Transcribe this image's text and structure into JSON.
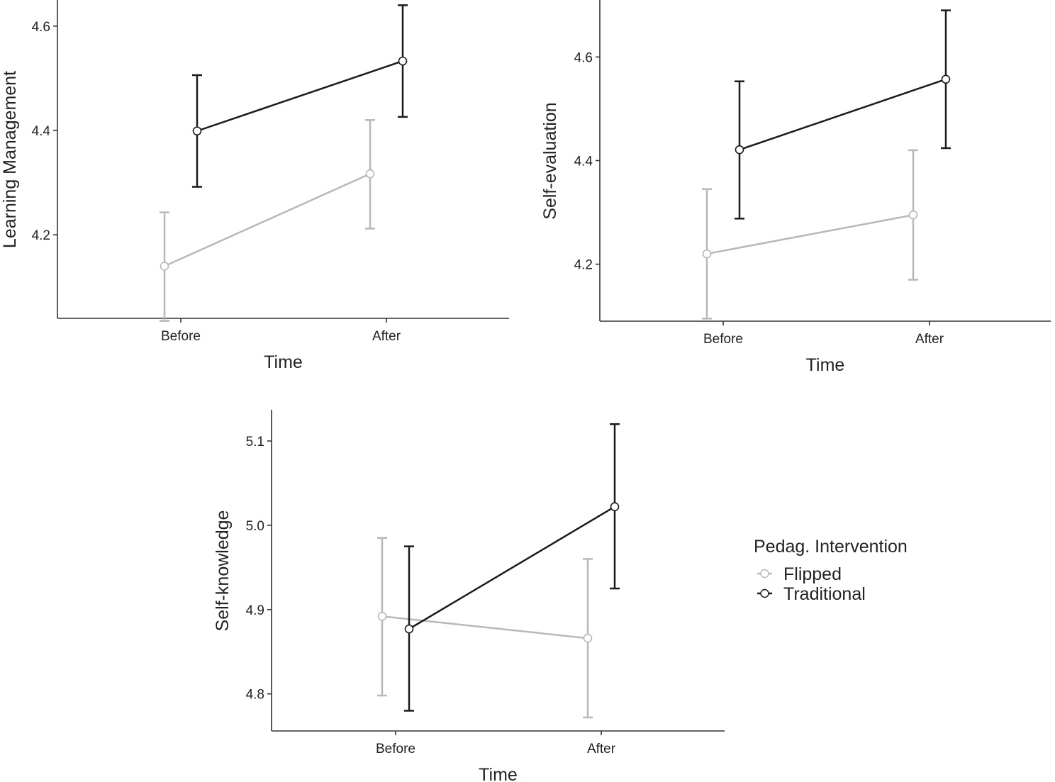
{
  "legend": {
    "title": "Pedag. Intervention",
    "items": [
      {
        "label": "Flipped",
        "color": "#b8b8b8"
      },
      {
        "label": "Traditional",
        "color": "#1a1a1a"
      }
    ]
  },
  "chart_data": [
    {
      "type": "line",
      "categories": [
        "Before",
        "After"
      ],
      "xlabel": "Time",
      "ylabel": "Learning Management",
      "ylim": [
        4.04,
        4.65
      ],
      "yticks": [
        4.2,
        4.4,
        4.6
      ],
      "ytick_labels": [
        "4.2",
        "4.4",
        "4.6"
      ],
      "series": [
        {
          "name": "Flipped",
          "values": [
            4.14,
            4.317
          ],
          "lower": [
            4.035,
            4.212
          ],
          "upper": [
            4.243,
            4.42
          ]
        },
        {
          "name": "Traditional",
          "values": [
            4.399,
            4.533
          ],
          "lower": [
            4.292,
            4.426
          ],
          "upper": [
            4.506,
            4.64
          ]
        }
      ]
    },
    {
      "type": "line",
      "categories": [
        "Before",
        "After"
      ],
      "xlabel": "Time",
      "ylabel": "Self-evaluation",
      "ylim": [
        4.09,
        4.71
      ],
      "yticks": [
        4.2,
        4.4,
        4.6
      ],
      "ytick_labels": [
        "4.2",
        "4.4",
        "4.6"
      ],
      "series": [
        {
          "name": "Flipped",
          "values": [
            4.22,
            4.295
          ],
          "lower": [
            4.095,
            4.17
          ],
          "upper": [
            4.345,
            4.42
          ]
        },
        {
          "name": "Traditional",
          "values": [
            4.421,
            4.557
          ],
          "lower": [
            4.288,
            4.424
          ],
          "upper": [
            4.553,
            4.69
          ]
        }
      ]
    },
    {
      "type": "line",
      "categories": [
        "Before",
        "After"
      ],
      "xlabel": "Time",
      "ylabel": "Self-knowledge",
      "ylim": [
        4.756,
        5.137
      ],
      "yticks": [
        4.8,
        4.9,
        5.0,
        5.1
      ],
      "ytick_labels": [
        "4.8",
        "4.9",
        "5.0",
        "5.1"
      ],
      "series": [
        {
          "name": "Flipped",
          "values": [
            4.892,
            4.866
          ],
          "lower": [
            4.798,
            4.772
          ],
          "upper": [
            4.985,
            4.96
          ]
        },
        {
          "name": "Traditional",
          "values": [
            4.877,
            5.022
          ],
          "lower": [
            4.78,
            4.925
          ],
          "upper": [
            4.975,
            5.12
          ]
        }
      ]
    }
  ]
}
